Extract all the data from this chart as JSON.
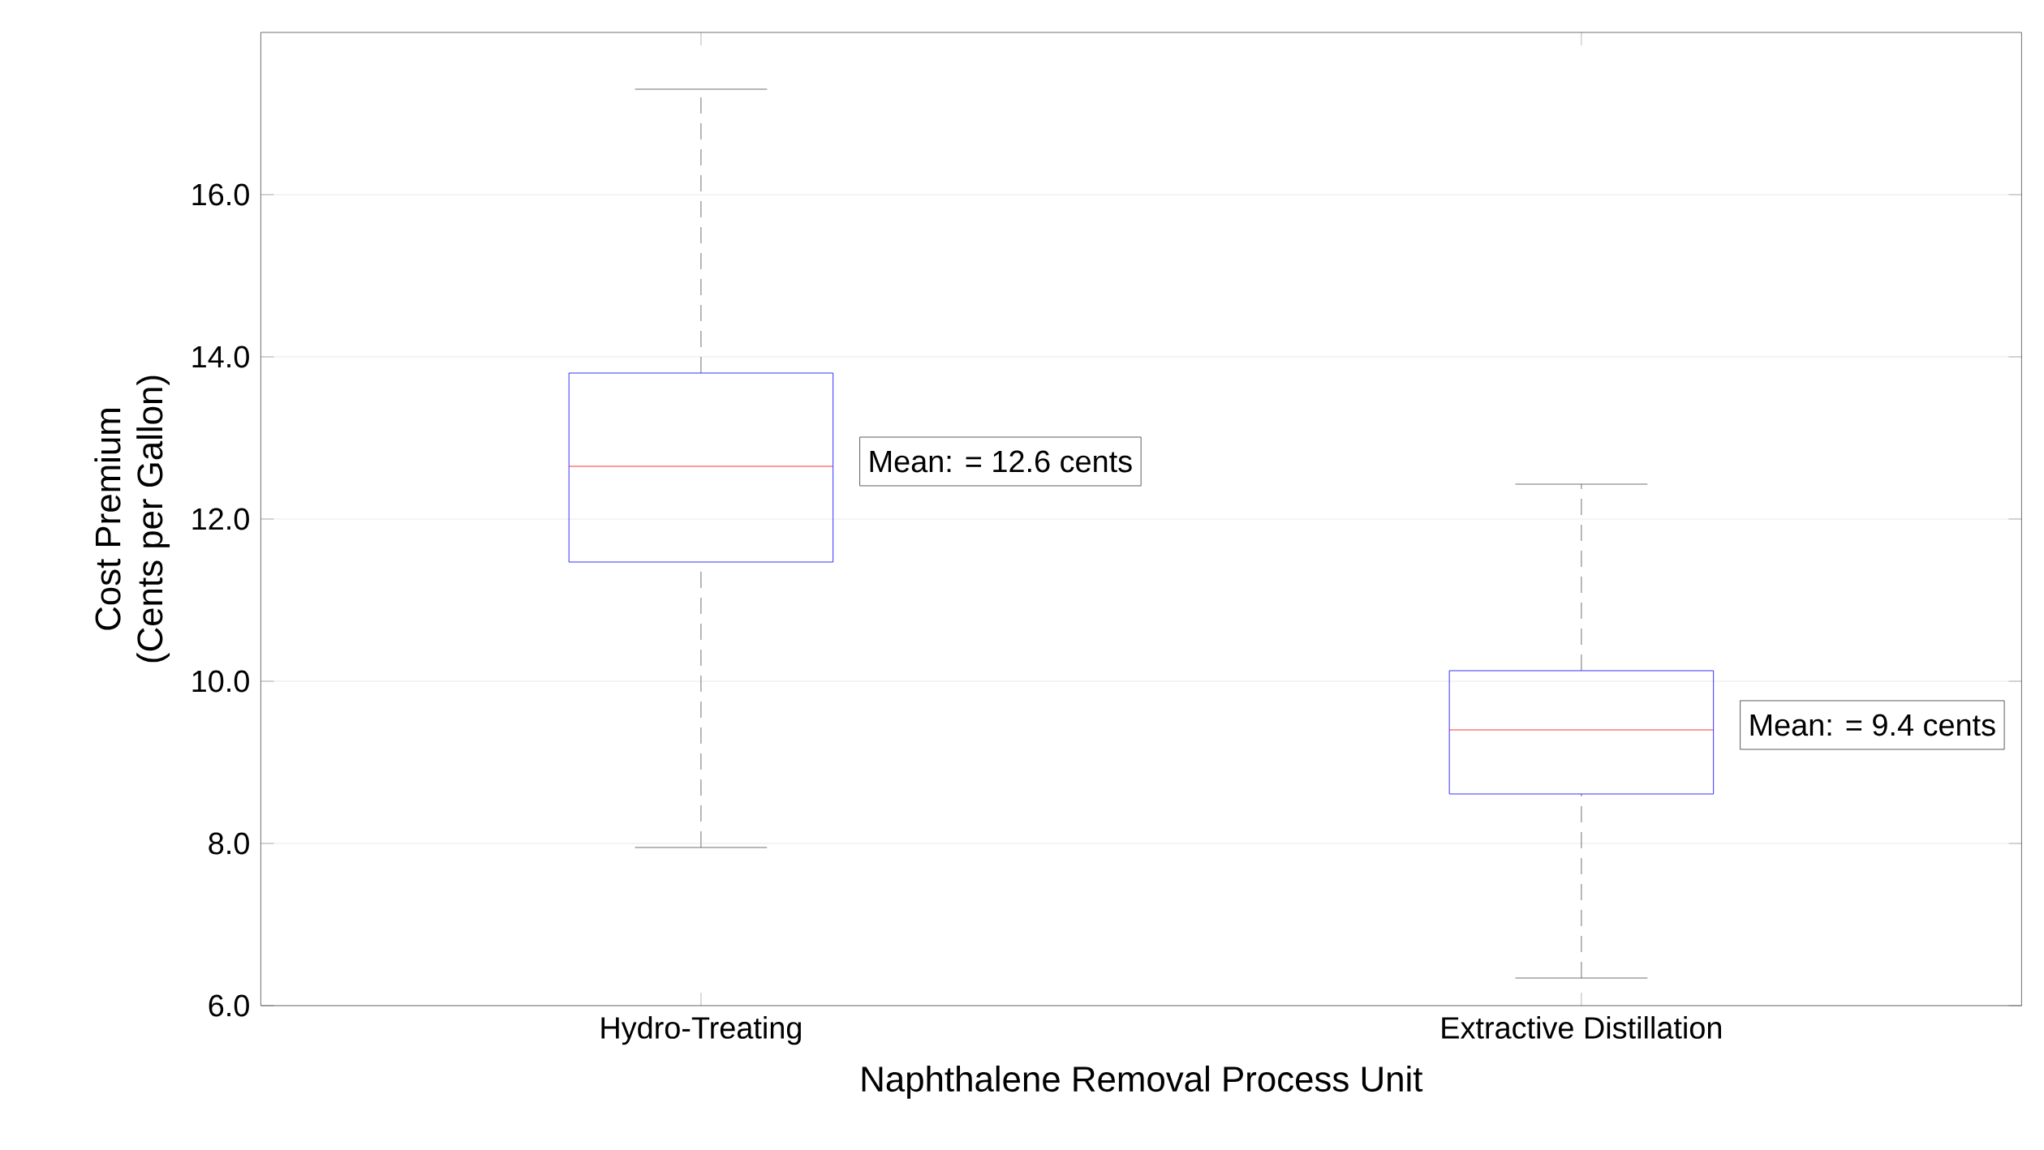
{
  "chart_data": {
    "type": "box",
    "xlabel": "Naphthalene Removal Process Unit",
    "ylabel": "Cost Premium\n(Cents per Gallon)",
    "categories": [
      "Hydro-Treating",
      "Extractive Distillation"
    ],
    "boxes": [
      {
        "low": 7.95,
        "q1": 11.47,
        "median": 12.65,
        "q3": 13.8,
        "high": 17.3
      },
      {
        "low": 6.34,
        "q1": 8.61,
        "median": 9.4,
        "q3": 10.13,
        "high": 12.43
      }
    ],
    "color": "#0000ff",
    "ylim": [
      6,
      18
    ],
    "yticks": [
      {
        "value": 6,
        "label": "6.0"
      },
      {
        "value": 8,
        "label": "8.0"
      },
      {
        "value": 10,
        "label": "10.0"
      },
      {
        "value": 12,
        "label": "12.0"
      },
      {
        "value": 14,
        "label": "14.0"
      },
      {
        "value": 16,
        "label": "16.0"
      }
    ],
    "grid": "y",
    "annotations": [
      "Mean: = 12.6 cents",
      "Mean: = 9.4 cents"
    ]
  }
}
